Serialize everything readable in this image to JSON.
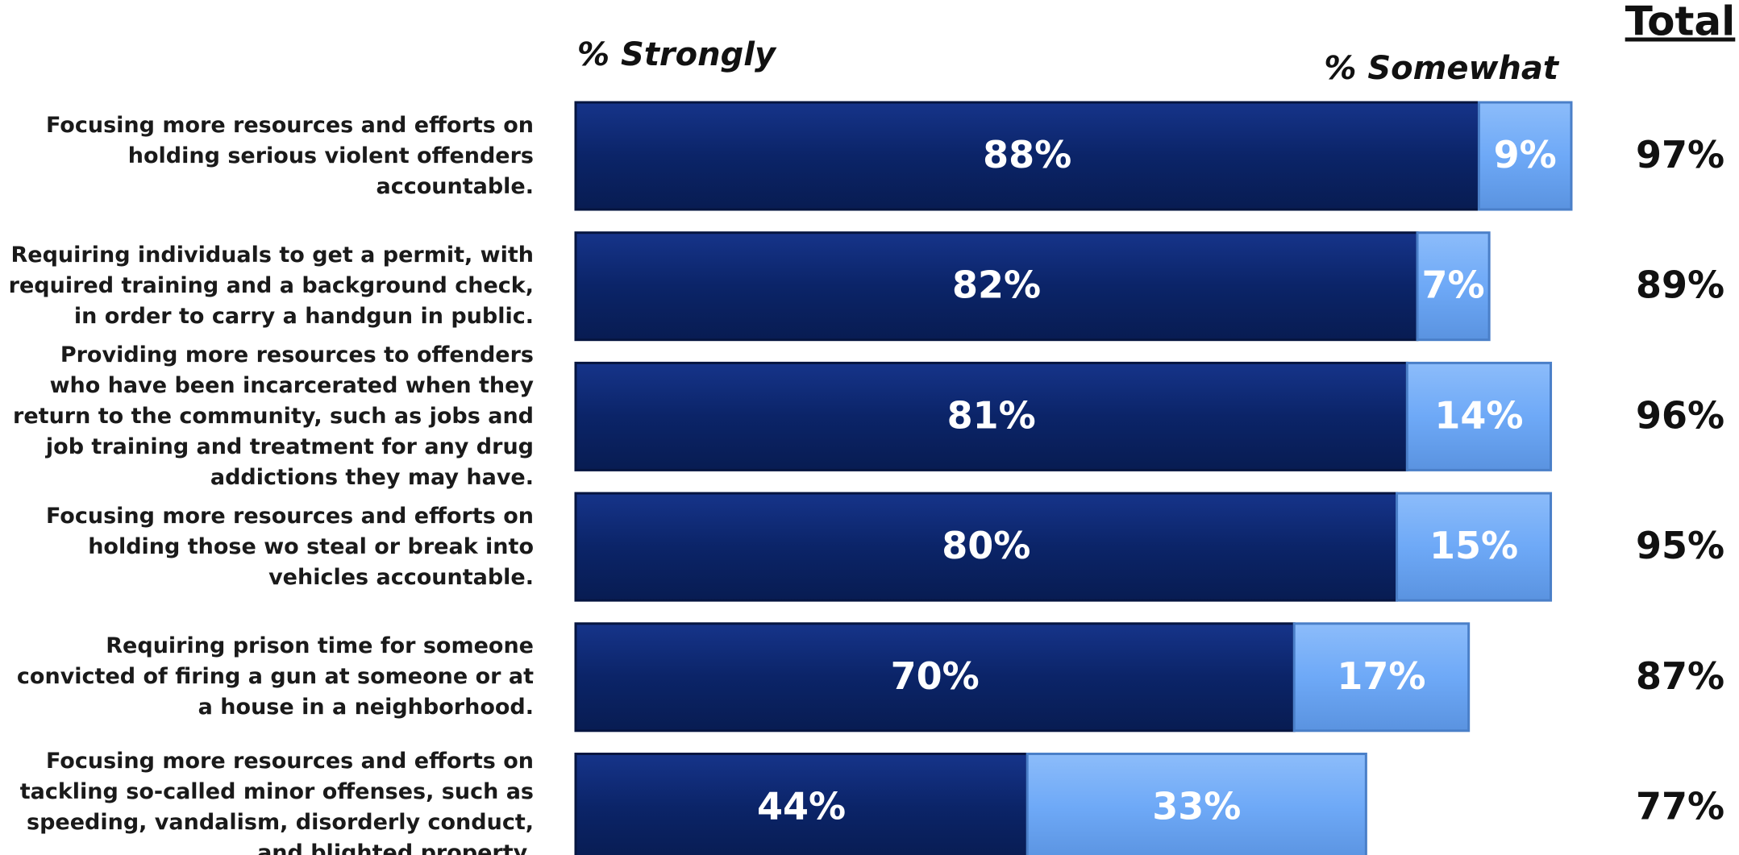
{
  "chart_data": {
    "type": "stacked-bar-horizontal",
    "categories": [
      "Focusing more resources and efforts on holding serious violent offenders accountable.",
      "Requiring individuals to get a permit, with required training and a background check, in order to carry a handgun in public.",
      "Providing more resources to offenders who have been incarcerated when they return to the community, such as jobs and job training and treatment for any drug addictions they may have.",
      "Focusing more resources and efforts on holding those wo steal or break into vehicles accountable.",
      "Requiring prison time for someone convicted of firing a gun at someone or at a house in a neighborhood.",
      "Focusing more resources and efforts on tackling so-called minor offenses, such as speeding, vandalism, disorderly conduct, and blighted property."
    ],
    "series": [
      {
        "name": "% Strongly",
        "color": "#0b2468",
        "values": [
          88,
          82,
          81,
          80,
          70,
          44
        ],
        "value_labels": [
          "88%",
          "82%",
          "81%",
          "80%",
          "70%",
          "44%"
        ]
      },
      {
        "name": "% Somewhat",
        "color": "#6ea9f7",
        "values": [
          9,
          7,
          14,
          15,
          17,
          33
        ],
        "value_labels": [
          "9%",
          "7%",
          "14%",
          "15%",
          "17%",
          "33%"
        ]
      }
    ],
    "totals": {
      "name": "Total",
      "values": [
        97,
        89,
        96,
        95,
        87,
        77
      ],
      "value_labels": [
        "97%",
        "89%",
        "96%",
        "95%",
        "87%",
        "77%"
      ]
    }
  }
}
